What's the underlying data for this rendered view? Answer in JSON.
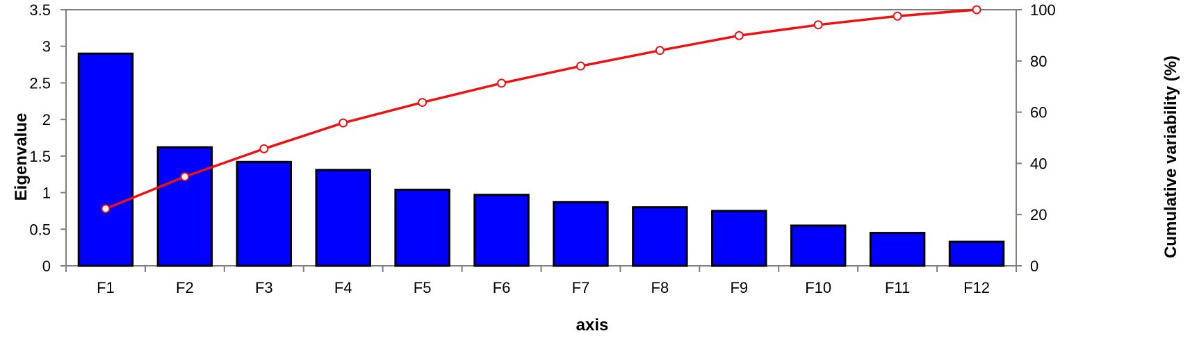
{
  "chart_data": {
    "type": "bar",
    "title": "",
    "categories": [
      "F1",
      "F2",
      "F3",
      "F4",
      "F5",
      "F6",
      "F7",
      "F8",
      "F9",
      "F10",
      "F11",
      "F12"
    ],
    "series": [
      {
        "type": "bar",
        "axis": "left",
        "values": [
          2.9,
          1.62,
          1.42,
          1.31,
          1.04,
          0.97,
          0.87,
          0.8,
          0.75,
          0.55,
          0.45,
          0.33
        ],
        "color": "#0000ff",
        "border_color": "#000000"
      },
      {
        "type": "line",
        "axis": "right",
        "values": [
          22.3,
          34.8,
          45.7,
          55.8,
          63.8,
          71.3,
          78.0,
          84.1,
          89.9,
          94.1,
          97.5,
          100.0
        ],
        "color": "#ee1111",
        "marker": "hollow-circle"
      }
    ],
    "xlabel": "axis",
    "ylabel": "Eigenvalue",
    "y2label": "Cumulative variability (%)",
    "ylim": [
      0,
      3.5
    ],
    "y_ticks": [
      "0",
      "0.5",
      "1",
      "1.5",
      "2",
      "2.5",
      "3",
      "3.5"
    ],
    "y2lim": [
      0,
      100
    ],
    "y2_ticks": [
      "0",
      "20",
      "40",
      "60",
      "80",
      "100"
    ],
    "grid": false,
    "axis_color": "#7f7f7f"
  }
}
